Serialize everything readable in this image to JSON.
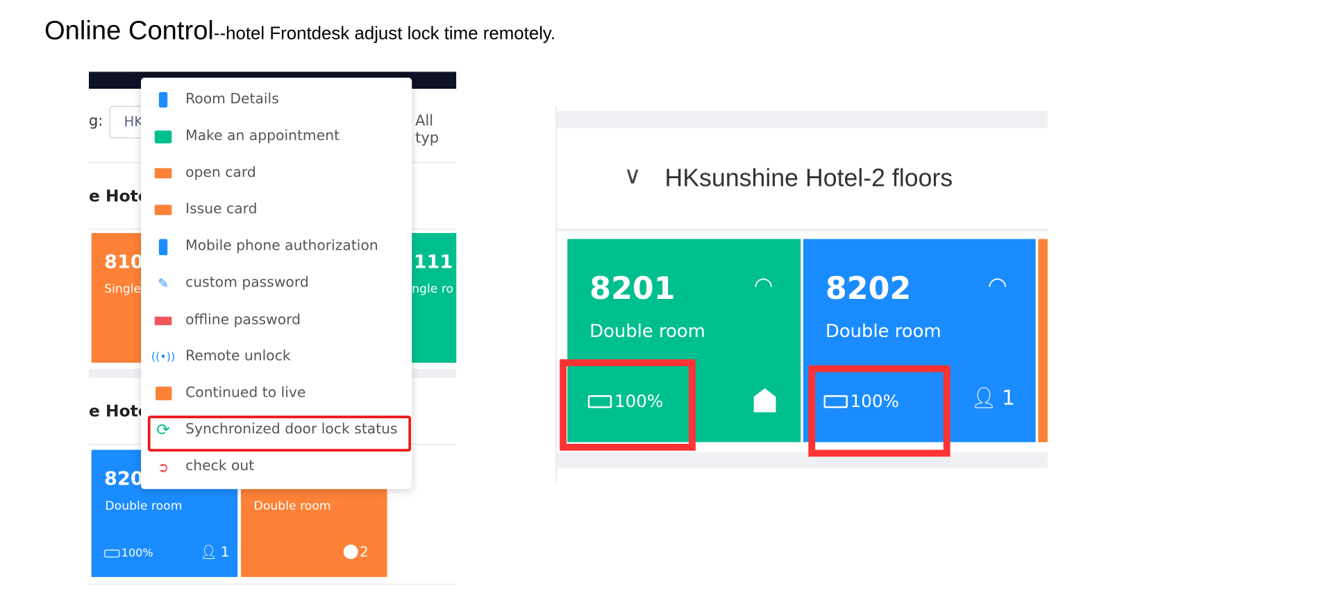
{
  "heading": {
    "main": "Online Control",
    "sub": "--hotel Frontdesk adjust lock time remotely."
  },
  "left_panel": {
    "filter_label": "g:",
    "filter_value": "HK",
    "room_type_filter": "All typ",
    "group1_title": "e Hote",
    "group2_title": "e Hote",
    "rooms_row1": [
      {
        "number": "810",
        "type": "Single",
        "color": "#fd8136"
      },
      {
        "number": "111",
        "type": "ingle ro",
        "color": "#00bf8f"
      }
    ],
    "rooms_row2": [
      {
        "number": "820",
        "type": "Double room",
        "battery": "100%",
        "guests": "1",
        "color": "#1a8cff"
      },
      {
        "number": "",
        "type": "Double room",
        "pending": "2",
        "color": "#fd8136"
      }
    ]
  },
  "context_menu": {
    "items": [
      {
        "label": "Room Details",
        "icon": "door-icon",
        "color": "#1a8cff"
      },
      {
        "label": "Make an appointment",
        "icon": "calendar-icon",
        "color": "#00bf8f"
      },
      {
        "label": "open card",
        "icon": "card-icon",
        "color": "#fd8136"
      },
      {
        "label": "Issue card",
        "icon": "card-icon",
        "color": "#fd8136"
      },
      {
        "label": "Mobile phone authorization",
        "icon": "phone-icon",
        "color": "#1a8cff"
      },
      {
        "label": "custom password",
        "icon": "pen-icon",
        "color": "#1a8cff"
      },
      {
        "label": "offline password",
        "icon": "password-icon",
        "color": "#f0565b"
      },
      {
        "label": "Remote unlock",
        "icon": "antenna-icon",
        "color": "#1a8cff"
      },
      {
        "label": "Continued to live",
        "icon": "calendar-icon",
        "color": "#fd8136"
      },
      {
        "label": "Synchronized door lock status",
        "icon": "sync-icon",
        "color": "#00bf8f"
      },
      {
        "label": "check out",
        "icon": "exit-icon",
        "color": "#f0565b"
      }
    ],
    "highlighted": "Synchronized door lock status",
    "highlight_color": "#f01515"
  },
  "right_panel": {
    "group_title": "HKsunshine Hotel-2 floors",
    "rooms": [
      {
        "number": "8201",
        "type": "Double room",
        "battery": "100%",
        "status_icon": "home-icon",
        "color": "#00bf8f"
      },
      {
        "number": "8202",
        "type": "Double room",
        "battery": "100%",
        "guests": "1",
        "status_icon": "person-icon",
        "color": "#1a8cff"
      }
    ],
    "annotation_color": "#ff3333"
  }
}
